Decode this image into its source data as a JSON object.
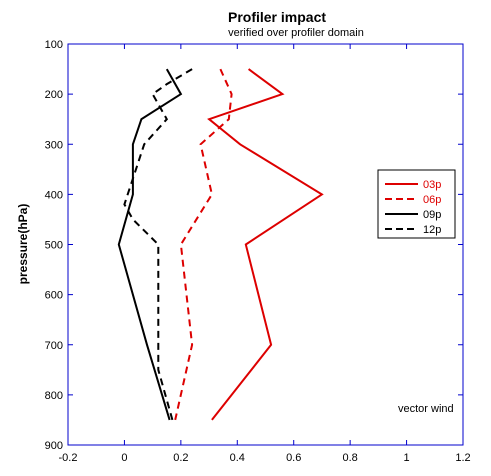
{
  "chart_data": {
    "type": "line",
    "title": "Profiler impact",
    "subtitle": "verified over profiler domain",
    "ylabel": "pressure(hPa)",
    "xlabel": "",
    "xlim": [
      -0.2,
      1.2
    ],
    "ylim": [
      900,
      100
    ],
    "y_inverted": true,
    "grid": false,
    "x_ticks": [
      "-0.2",
      "0",
      "0.2",
      "0.4",
      "0.6",
      "0.8",
      "1",
      "1.2"
    ],
    "y_ticks": [
      "100",
      "200",
      "300",
      "400",
      "500",
      "600",
      "700",
      "800",
      "900"
    ],
    "legend_position": "right",
    "annotation": "vector wind",
    "series": [
      {
        "name": "03p",
        "color": "#dd0000",
        "dash": "solid",
        "points": [
          {
            "x": 0.44,
            "y": 150
          },
          {
            "x": 0.56,
            "y": 200
          },
          {
            "x": 0.3,
            "y": 250
          },
          {
            "x": 0.41,
            "y": 300
          },
          {
            "x": 0.7,
            "y": 400
          },
          {
            "x": 0.43,
            "y": 500
          },
          {
            "x": 0.52,
            "y": 700
          },
          {
            "x": 0.31,
            "y": 850
          }
        ]
      },
      {
        "name": "06p",
        "color": "#dd0000",
        "dash": "dashed",
        "points": [
          {
            "x": 0.34,
            "y": 150
          },
          {
            "x": 0.38,
            "y": 200
          },
          {
            "x": 0.37,
            "y": 250
          },
          {
            "x": 0.27,
            "y": 300
          },
          {
            "x": 0.31,
            "y": 400
          },
          {
            "x": 0.2,
            "y": 500
          },
          {
            "x": 0.24,
            "y": 700
          },
          {
            "x": 0.18,
            "y": 850
          }
        ]
      },
      {
        "name": "09p",
        "color": "#000000",
        "dash": "solid",
        "points": [
          {
            "x": 0.15,
            "y": 150
          },
          {
            "x": 0.2,
            "y": 200
          },
          {
            "x": 0.06,
            "y": 250
          },
          {
            "x": 0.03,
            "y": 300
          },
          {
            "x": 0.03,
            "y": 400
          },
          {
            "x": -0.02,
            "y": 500
          },
          {
            "x": 0.08,
            "y": 700
          },
          {
            "x": 0.16,
            "y": 850
          }
        ]
      },
      {
        "name": "12p",
        "color": "#000000",
        "dash": "dashed",
        "points": [
          {
            "x": 0.24,
            "y": 150
          },
          {
            "x": 0.15,
            "y": 180
          },
          {
            "x": 0.1,
            "y": 200
          },
          {
            "x": 0.15,
            "y": 250
          },
          {
            "x": 0.07,
            "y": 300
          },
          {
            "x": 0.0,
            "y": 420
          },
          {
            "x": 0.03,
            "y": 450
          },
          {
            "x": 0.12,
            "y": 500
          },
          {
            "x": 0.12,
            "y": 750
          },
          {
            "x": 0.17,
            "y": 850
          }
        ]
      }
    ]
  }
}
